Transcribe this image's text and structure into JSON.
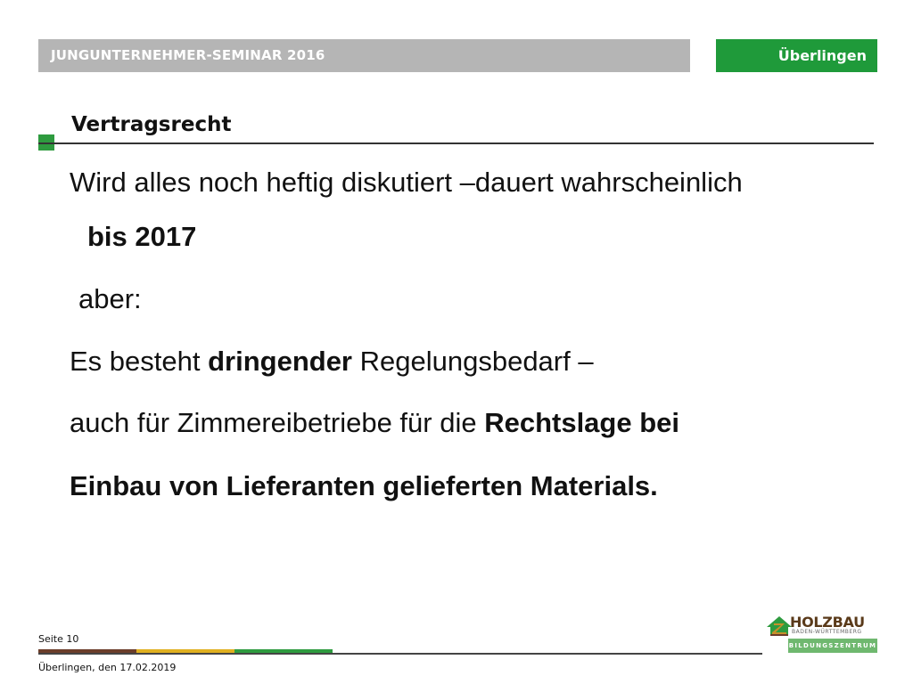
{
  "header": {
    "seminar_title": "JUNGUNTERNEHMER-SEMINAR 2016",
    "location": "Überlingen"
  },
  "slide": {
    "section_title": "Vertragsrecht",
    "line1": "Wird alles noch heftig diskutiert –dauert wahrscheinlich",
    "line2_bold": "bis 2017",
    "line3": "aber:",
    "line4_pre": "Es besteht ",
    "line4_bold": "dringender",
    "line4_post": " Regelungsbedarf –",
    "line5_pre": "auch für Zimmereibetriebe für die ",
    "line5_bold": "Rechtslage bei",
    "line6_bold": "Einbau von Lieferanten gelieferten Materials."
  },
  "footer": {
    "page": "Seite 10",
    "date": "Überlingen, den 17.02.2019"
  },
  "logo": {
    "name": "HOLZBAU",
    "region": "BADEN-WÜRTTEMBERG",
    "band": "BILDUNGSZENTRUM"
  },
  "colors": {
    "header_gray": "#b5b5b5",
    "accent_green": "#1f9a3a",
    "stripe_brown": "#6b3d2a",
    "stripe_yellow": "#e0b020",
    "stripe_green": "#2e9b3f"
  }
}
